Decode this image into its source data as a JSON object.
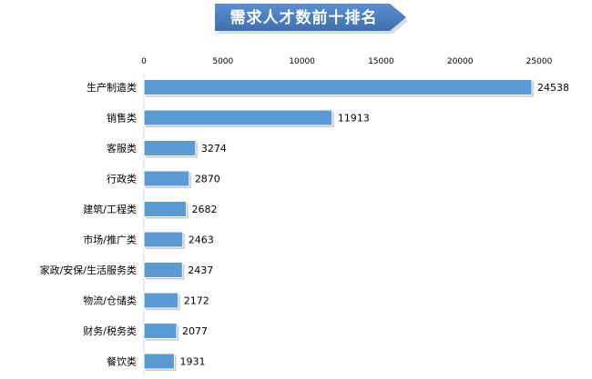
{
  "chart_data": {
    "type": "bar",
    "orientation": "horizontal",
    "title": "需求人才数前十排名",
    "categories": [
      "生产制造类",
      "销售类",
      "客服类",
      "行政类",
      "建筑/工程类",
      "市场/推广类",
      "家政/安保/生活服务类",
      "物流/仓储类",
      "财务/税务类",
      "餐饮类"
    ],
    "values": [
      24538,
      11913,
      3274,
      2870,
      2682,
      2463,
      2437,
      2172,
      2077,
      1931
    ],
    "xlim": [
      0,
      25000
    ],
    "xticks": [
      0,
      5000,
      10000,
      15000,
      20000,
      25000
    ],
    "axis_position": "top",
    "grid": false,
    "data_labels": true,
    "bar_color": "#5b9bd5",
    "title_banner_color": "#4f7fbf"
  }
}
